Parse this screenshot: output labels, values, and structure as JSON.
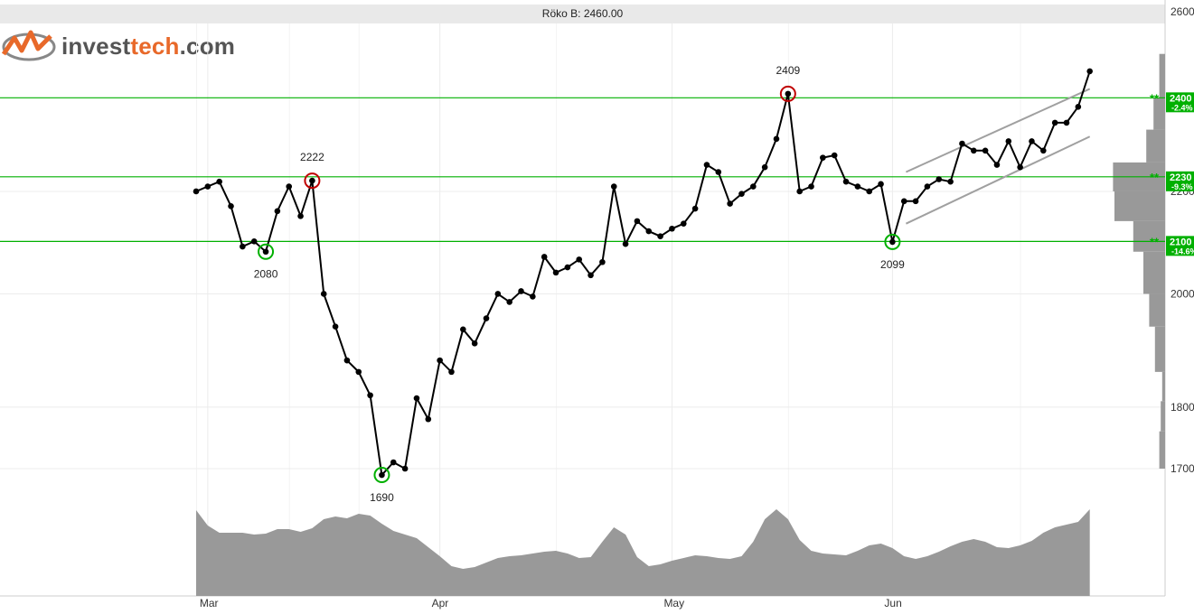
{
  "title": "Röko B: 2460.00",
  "logo": {
    "brand_a": "invest",
    "brand_b": "tech",
    "brand_c": ".com"
  },
  "chart_data": {
    "type": "line",
    "title": "Röko B: 2460.00",
    "x_labels": [
      "Mar",
      "Apr",
      "May",
      "Jun"
    ],
    "y_ticks": [
      1700,
      1800,
      2000,
      2200,
      2600
    ],
    "y_tick_labels": [
      "1700",
      "1800",
      "2000",
      "2200",
      "2600"
    ],
    "ylim": [
      1690,
      2600
    ],
    "y_scale": "log",
    "price_series": [
      2200,
      2210,
      2220,
      2170,
      2090,
      2100,
      2080,
      2160,
      2210,
      2150,
      2222,
      2000,
      1940,
      1880,
      1860,
      1820,
      1690,
      1710,
      1700,
      1815,
      1780,
      1880,
      1860,
      1935,
      1910,
      1955,
      2000,
      1985,
      2005,
      1995,
      2070,
      2040,
      2050,
      2065,
      2035,
      2060,
      2210,
      2095,
      2140,
      2120,
      2110,
      2125,
      2135,
      2165,
      2255,
      2240,
      2175,
      2195,
      2210,
      2250,
      2310,
      2409,
      2200,
      2210,
      2270,
      2275,
      2220,
      2210,
      2200,
      2215,
      2099,
      2180,
      2180,
      2210,
      2225,
      2220,
      2300,
      2285,
      2285,
      2255,
      2305,
      2250,
      2305,
      2285,
      2345,
      2345,
      2380,
      2460
    ],
    "extremes": [
      {
        "label": "2222",
        "value": 2222,
        "index": 10,
        "type": "top"
      },
      {
        "label": "2080",
        "value": 2080,
        "index": 6,
        "type": "bottom"
      },
      {
        "label": "1690",
        "value": 1690,
        "index": 16,
        "type": "bottom"
      },
      {
        "label": "2409",
        "value": 2409,
        "index": 51,
        "type": "top"
      },
      {
        "label": "2099",
        "value": 2099,
        "index": 60,
        "type": "bottom"
      }
    ],
    "support_resistance": [
      {
        "value": 2400,
        "label": "2400",
        "pct": "-2.4%",
        "stars": "**"
      },
      {
        "value": 2230,
        "label": "2230",
        "pct": "-9.3%",
        "stars": "**"
      },
      {
        "value": 2100,
        "label": "2100",
        "pct": "-14.6%",
        "stars": "**"
      }
    ],
    "trend_channel": {
      "upper": [
        {
          "index": 60,
          "value": 2240
        },
        {
          "index": 77,
          "value": 2420
        }
      ],
      "lower": [
        {
          "index": 60,
          "value": 2135
        },
        {
          "index": 77,
          "value": 2315
        }
      ]
    },
    "volume_area": [
      0.95,
      0.78,
      0.7,
      0.7,
      0.7,
      0.68,
      0.69,
      0.74,
      0.74,
      0.71,
      0.75,
      0.85,
      0.88,
      0.86,
      0.91,
      0.89,
      0.8,
      0.72,
      0.68,
      0.64,
      0.54,
      0.44,
      0.33,
      0.3,
      0.32,
      0.37,
      0.42,
      0.44,
      0.45,
      0.47,
      0.49,
      0.5,
      0.47,
      0.42,
      0.43,
      0.6,
      0.76,
      0.68,
      0.43,
      0.33,
      0.35,
      0.39,
      0.42,
      0.45,
      0.44,
      0.42,
      0.41,
      0.44,
      0.6,
      0.85,
      0.96,
      0.85,
      0.62,
      0.5,
      0.47,
      0.46,
      0.45,
      0.5,
      0.56,
      0.58,
      0.53,
      0.44,
      0.41,
      0.44,
      0.49,
      0.55,
      0.6,
      0.63,
      0.6,
      0.54,
      0.53,
      0.56,
      0.61,
      0.7,
      0.76,
      0.79,
      0.82,
      0.96
    ],
    "volume_profile": [
      {
        "low": 2400,
        "high": 2500,
        "share": 0.08
      },
      {
        "low": 2330,
        "high": 2400,
        "share": 0.16
      },
      {
        "low": 2260,
        "high": 2330,
        "share": 0.26
      },
      {
        "low": 2200,
        "high": 2260,
        "share": 0.72
      },
      {
        "low": 2140,
        "high": 2200,
        "share": 0.7
      },
      {
        "low": 2080,
        "high": 2140,
        "share": 0.44
      },
      {
        "low": 2000,
        "high": 2080,
        "share": 0.3
      },
      {
        "low": 1940,
        "high": 2000,
        "share": 0.22
      },
      {
        "low": 1860,
        "high": 1940,
        "share": 0.14
      },
      {
        "low": 1810,
        "high": 1860,
        "share": 0.04
      },
      {
        "low": 1760,
        "high": 1810,
        "share": 0.06
      },
      {
        "low": 1700,
        "high": 1760,
        "share": 0.08
      }
    ],
    "grid": true,
    "colors": {
      "line": "#000000",
      "support": "#00b000",
      "resistance_circle": "#c00000",
      "support_circle": "#00b000",
      "volume": "#999999",
      "channel": "#a0a0a0",
      "label_bg": "#00b000"
    }
  }
}
